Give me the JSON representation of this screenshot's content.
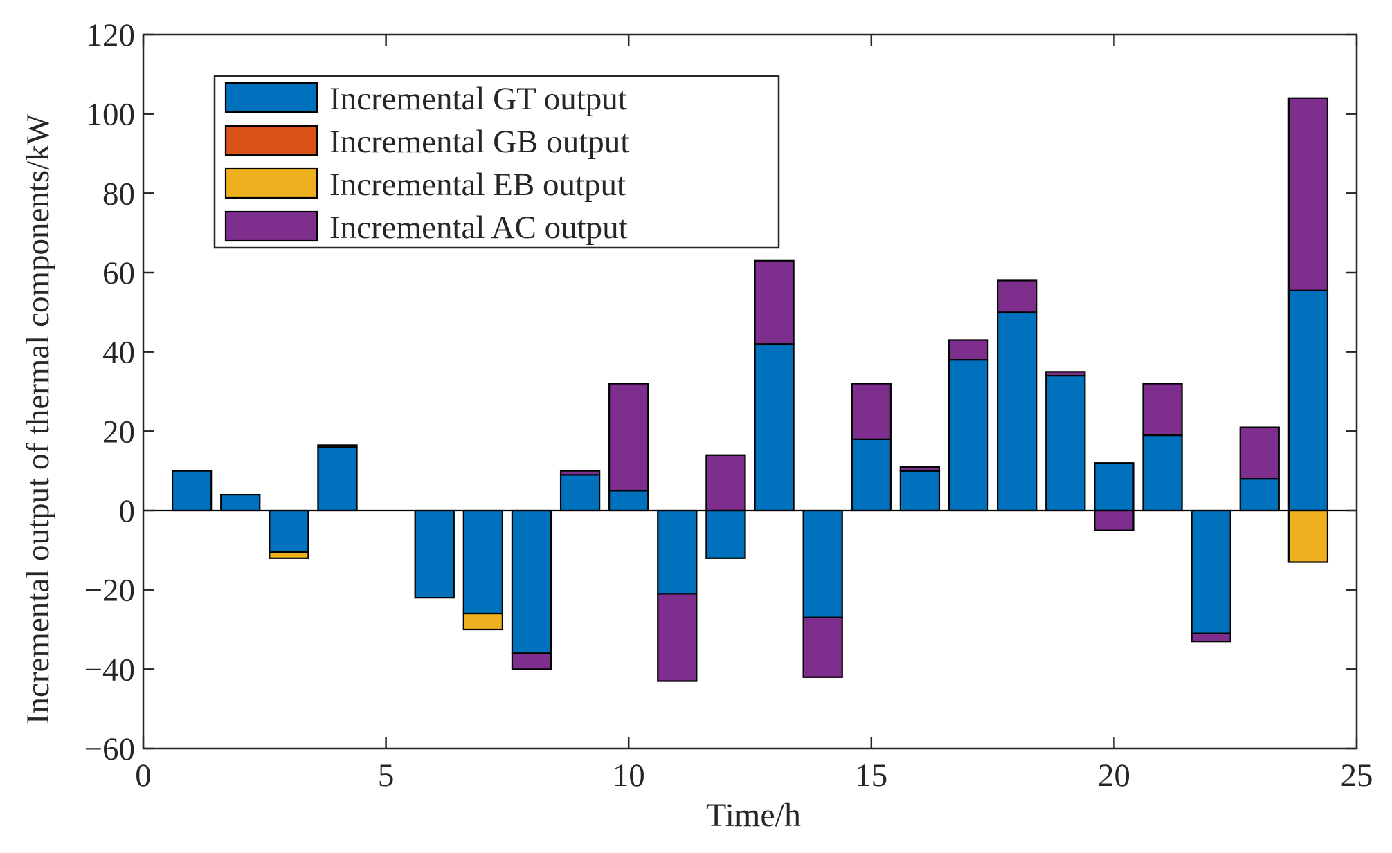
{
  "chart_data": {
    "type": "bar",
    "stacked": true,
    "title": "",
    "xlabel": "Time/h",
    "ylabel": "Incremental output of thermal components/kW",
    "xlim": [
      0,
      25
    ],
    "ylim": [
      -60,
      120
    ],
    "xticks": [
      0,
      5,
      10,
      15,
      20,
      25
    ],
    "yticks": [
      -60,
      -40,
      -20,
      0,
      20,
      40,
      60,
      80,
      100,
      120
    ],
    "grid": false,
    "legend_position": "top-left",
    "x": [
      1,
      2,
      3,
      4,
      5,
      6,
      7,
      8,
      9,
      10,
      11,
      12,
      13,
      14,
      15,
      16,
      17,
      18,
      19,
      20,
      21,
      22,
      23,
      24
    ],
    "series": [
      {
        "name": "Incremental GT output",
        "color": "#0072BD",
        "values": [
          10,
          4,
          -10.5,
          16,
          0,
          -22,
          -26,
          -36,
          9,
          5,
          -21,
          -12,
          42,
          -27,
          18,
          10,
          38,
          50,
          34,
          12,
          19,
          -31,
          8,
          55.5
        ]
      },
      {
        "name": "Incremental GB output",
        "color": "#D95319",
        "values": [
          0,
          0,
          0,
          0,
          0,
          0,
          0,
          0,
          0,
          0,
          0,
          0,
          0,
          0,
          0,
          0,
          0,
          0,
          0,
          0,
          0,
          0,
          0,
          0
        ]
      },
      {
        "name": "Incremental EB output",
        "color": "#EDB120",
        "values": [
          0,
          0,
          -1.5,
          0,
          0,
          0,
          -4,
          0,
          0,
          0,
          0,
          0,
          0,
          0,
          0,
          0,
          0,
          0,
          0,
          0,
          0,
          0,
          0,
          -13
        ]
      },
      {
        "name": "Incremental AC output",
        "color": "#7E2F8E",
        "values": [
          0,
          0,
          0,
          0.5,
          0,
          0,
          0,
          -4,
          1,
          27,
          -22,
          14,
          21,
          -15,
          14,
          1,
          5,
          8,
          1,
          -5,
          13,
          -2,
          13,
          48.5
        ]
      }
    ]
  }
}
